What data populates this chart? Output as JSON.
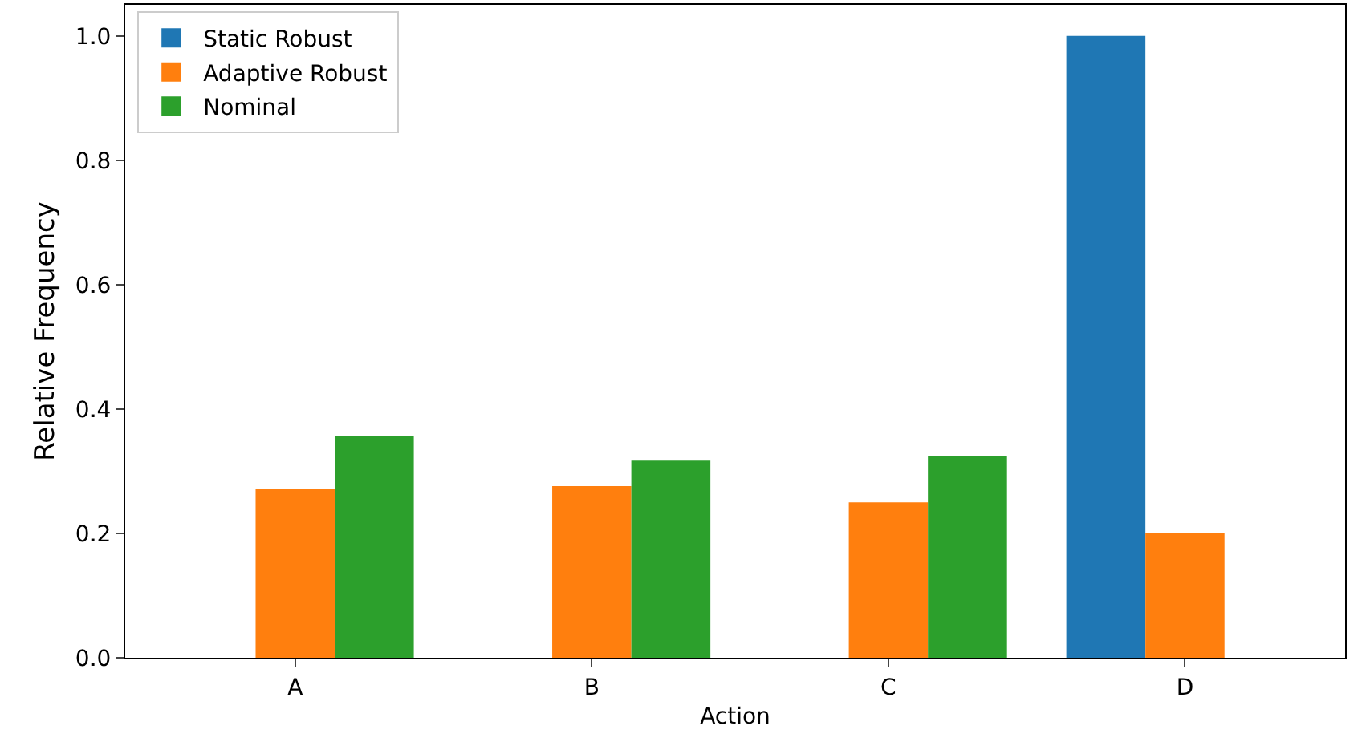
{
  "chart_data": {
    "type": "bar",
    "xlabel": "Action",
    "ylabel": "Relative Frequency",
    "categories": [
      "A",
      "B",
      "C",
      "D"
    ],
    "series": [
      {
        "name": "Static Robust",
        "color": "#1f77b4",
        "values": [
          0,
          0,
          0,
          1.0
        ]
      },
      {
        "name": "Adaptive Robust",
        "color": "#ff7f0e",
        "values": [
          0.271,
          0.276,
          0.25,
          0.201
        ]
      },
      {
        "name": "Nominal",
        "color": "#2ca02c",
        "values": [
          0.356,
          0.317,
          0.325,
          0
        ]
      }
    ],
    "ylim": [
      0,
      1.05
    ],
    "yticks": [
      {
        "value": 0,
        "label": "0.0"
      },
      {
        "value": 0.2,
        "label": "0.2"
      },
      {
        "value": 0.4,
        "label": "0.4"
      },
      {
        "value": 0.6,
        "label": "0.6"
      },
      {
        "value": 0.8,
        "label": "0.8"
      },
      {
        "value": 1.0,
        "label": "1.0"
      }
    ],
    "legend": "top left"
  }
}
